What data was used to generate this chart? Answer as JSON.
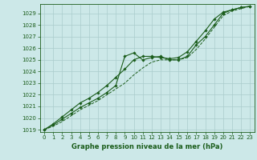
{
  "title": "Graphe pression niveau de la mer (hPa)",
  "background_color": "#cce8e8",
  "grid_color": "#aacccc",
  "line_color": "#1a5c1a",
  "xlim": [
    -0.5,
    23.5
  ],
  "ylim": [
    1018.8,
    1029.8
  ],
  "xticks": [
    0,
    1,
    2,
    3,
    4,
    5,
    6,
    7,
    8,
    9,
    10,
    11,
    12,
    13,
    14,
    15,
    16,
    17,
    18,
    19,
    20,
    21,
    22,
    23
  ],
  "yticks": [
    1019,
    1020,
    1021,
    1022,
    1023,
    1024,
    1025,
    1026,
    1027,
    1028,
    1029
  ],
  "series1_x": [
    0,
    1,
    2,
    3,
    4,
    5,
    6,
    7,
    8,
    9,
    10,
    11,
    12,
    13,
    14,
    15,
    16,
    17,
    18,
    19,
    20,
    21,
    22,
    23
  ],
  "series1": [
    1019.0,
    1019.4,
    1019.9,
    1020.4,
    1020.9,
    1021.3,
    1021.7,
    1022.2,
    1022.8,
    1025.3,
    1025.6,
    1025.0,
    1025.2,
    1025.3,
    1025.0,
    1025.0,
    1025.3,
    1026.3,
    1027.0,
    1028.0,
    1029.0,
    1029.3,
    1029.5,
    1029.6
  ],
  "series2_x": [
    0,
    1,
    2,
    3,
    4,
    5,
    6,
    7,
    8,
    9,
    10,
    11,
    12,
    13,
    14,
    15,
    16,
    17,
    18,
    19,
    20,
    21,
    22,
    23
  ],
  "series2": [
    1019.0,
    1019.3,
    1019.7,
    1020.2,
    1020.7,
    1021.1,
    1021.5,
    1022.0,
    1022.5,
    1023.0,
    1023.7,
    1024.3,
    1024.8,
    1025.0,
    1025.0,
    1025.0,
    1025.2,
    1025.9,
    1026.8,
    1027.8,
    1028.8,
    1029.2,
    1029.4,
    1029.6
  ],
  "series3_x": [
    0,
    1,
    2,
    3,
    4,
    5,
    6,
    7,
    8,
    9,
    10,
    11,
    12,
    13,
    14,
    15,
    16,
    17,
    18,
    19,
    20,
    21,
    22,
    23
  ],
  "series3": [
    1019.0,
    1019.5,
    1020.1,
    1020.7,
    1021.3,
    1021.7,
    1022.2,
    1022.8,
    1023.5,
    1024.2,
    1025.0,
    1025.3,
    1025.3,
    1025.2,
    1025.1,
    1025.2,
    1025.7,
    1026.6,
    1027.5,
    1028.5,
    1029.1,
    1029.3,
    1029.5,
    1029.6
  ],
  "tick_fontsize": 5.0,
  "label_fontsize": 6.0
}
